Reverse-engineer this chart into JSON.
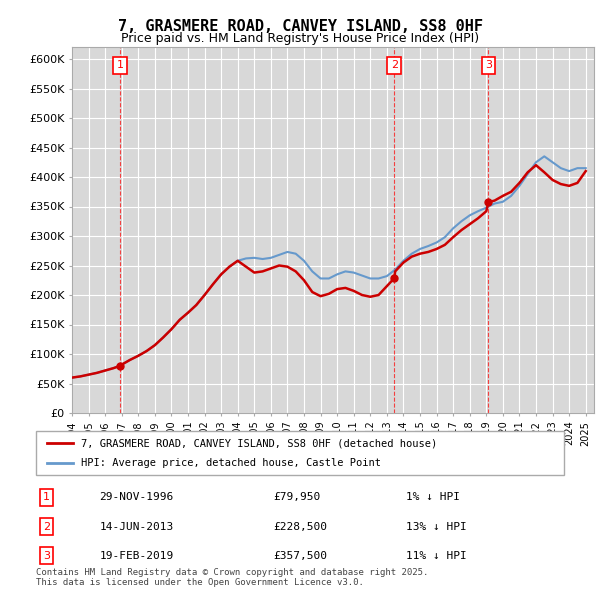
{
  "title": "7, GRASMERE ROAD, CANVEY ISLAND, SS8 0HF",
  "subtitle": "Price paid vs. HM Land Registry's House Price Index (HPI)",
  "ylabel": "",
  "background_color": "#ffffff",
  "plot_bg_color": "#f0f0f0",
  "grid_color": "#ffffff",
  "hatch_color": "#d8d8d8",
  "red_line_color": "#cc0000",
  "blue_line_color": "#6699cc",
  "ylim_max": 620000,
  "ytick_step": 50000,
  "transactions": [
    {
      "label": "1",
      "date_str": "29-NOV-1996",
      "price": 79950,
      "pct": "1%",
      "year": 1996.91
    },
    {
      "label": "2",
      "date_str": "14-JUN-2013",
      "price": 228500,
      "pct": "13%",
      "year": 2013.45
    },
    {
      "label": "3",
      "date_str": "19-FEB-2019",
      "price": 357500,
      "pct": "11%",
      "year": 2019.13
    }
  ],
  "hpi_line": {
    "x": [
      1994,
      1994.5,
      1995,
      1995.5,
      1996,
      1996.5,
      1997,
      1997.5,
      1998,
      1998.5,
      1999,
      1999.5,
      2000,
      2000.5,
      2001,
      2001.5,
      2002,
      2002.5,
      2003,
      2003.5,
      2004,
      2004.5,
      2005,
      2005.5,
      2006,
      2006.5,
      2007,
      2007.5,
      2008,
      2008.5,
      2009,
      2009.5,
      2010,
      2010.5,
      2011,
      2011.5,
      2012,
      2012.5,
      2013,
      2013.5,
      2014,
      2014.5,
      2015,
      2015.5,
      2016,
      2016.5,
      2017,
      2017.5,
      2018,
      2018.5,
      2019,
      2019.5,
      2020,
      2020.5,
      2021,
      2021.5,
      2022,
      2022.5,
      2023,
      2023.5,
      2024,
      2024.5,
      2025
    ],
    "y": [
      60000,
      62000,
      65000,
      68000,
      72000,
      76000,
      82000,
      90000,
      97000,
      105000,
      115000,
      128000,
      142000,
      158000,
      170000,
      183000,
      200000,
      218000,
      235000,
      248000,
      258000,
      262000,
      263000,
      261000,
      263000,
      268000,
      273000,
      270000,
      258000,
      240000,
      228000,
      228000,
      235000,
      240000,
      238000,
      233000,
      228000,
      228000,
      232000,
      243000,
      258000,
      270000,
      278000,
      283000,
      289000,
      298000,
      313000,
      325000,
      335000,
      342000,
      348000,
      355000,
      358000,
      368000,
      385000,
      405000,
      425000,
      435000,
      425000,
      415000,
      410000,
      415000,
      415000
    ]
  },
  "red_line": {
    "x": [
      1994,
      1994.5,
      1995,
      1995.5,
      1996,
      1996.5,
      1996.91,
      1997,
      1997.5,
      1998,
      1998.5,
      1999,
      1999.5,
      2000,
      2000.5,
      2001,
      2001.5,
      2002,
      2002.5,
      2003,
      2003.5,
      2004,
      2004.5,
      2005,
      2005.5,
      2006,
      2006.5,
      2007,
      2007.5,
      2008,
      2008.5,
      2009,
      2009.5,
      2010,
      2010.5,
      2011,
      2011.5,
      2012,
      2012.5,
      2013,
      2013.45,
      2013.5,
      2014,
      2014.5,
      2015,
      2015.5,
      2016,
      2016.5,
      2017,
      2017.5,
      2018,
      2018.5,
      2019,
      2019.13,
      2019.5,
      2020,
      2020.5,
      2021,
      2021.5,
      2022,
      2022.5,
      2023,
      2023.5,
      2024,
      2024.5,
      2025
    ],
    "y": [
      60000,
      62000,
      65000,
      68000,
      72000,
      76000,
      79950,
      82000,
      90000,
      97000,
      105000,
      115000,
      128000,
      142000,
      158000,
      170000,
      183000,
      200000,
      218000,
      235000,
      248000,
      258000,
      248000,
      238000,
      240000,
      245000,
      250000,
      248000,
      240000,
      225000,
      205000,
      198000,
      202000,
      210000,
      212000,
      207000,
      200000,
      197000,
      200000,
      215000,
      228500,
      240000,
      255000,
      265000,
      270000,
      273000,
      278000,
      285000,
      298000,
      310000,
      320000,
      330000,
      342000,
      357500,
      360000,
      368000,
      375000,
      390000,
      408000,
      420000,
      408000,
      395000,
      388000,
      385000,
      390000,
      410000
    ]
  },
  "legend_label_red": "7, GRASMERE ROAD, CANVEY ISLAND, SS8 0HF (detached house)",
  "legend_label_blue": "HPI: Average price, detached house, Castle Point",
  "footer": "Contains HM Land Registry data © Crown copyright and database right 2025.\nThis data is licensed under the Open Government Licence v3.0.",
  "xmin": 1994,
  "xmax": 2025.5
}
